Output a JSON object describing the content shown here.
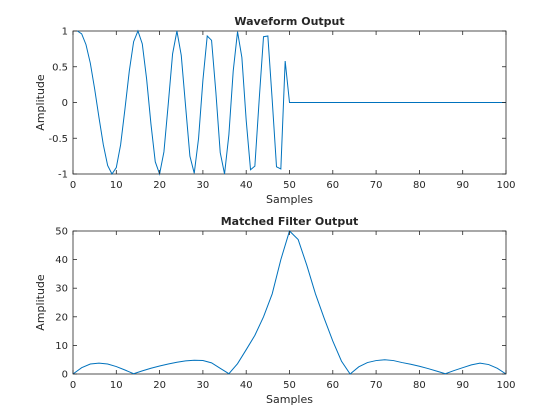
{
  "line_color": "#0072BD",
  "chart_data": [
    {
      "type": "line",
      "title": "Waveform Output",
      "xlabel": "Samples",
      "ylabel": "Amplitude",
      "xlim": [
        0,
        100
      ],
      "ylim": [
        -1,
        1
      ],
      "xticks": [
        0,
        10,
        20,
        30,
        40,
        50,
        60,
        70,
        80,
        90,
        100
      ],
      "xtick_labels": [
        "0",
        "10",
        "20",
        "30",
        "40",
        "50",
        "60",
        "70",
        "80",
        "90",
        "100"
      ],
      "yticks": [
        -1,
        -0.5,
        0,
        0.5,
        1
      ],
      "ytick_labels": [
        "-1",
        "-0.5",
        "0",
        "0.5",
        "1"
      ],
      "grid": false,
      "series": [
        {
          "x": [
            1,
            2,
            3,
            4,
            5,
            6,
            7,
            8,
            9,
            10,
            11,
            12,
            13,
            14,
            15,
            16,
            17,
            18,
            19,
            20,
            21,
            22,
            23,
            24,
            25,
            26,
            27,
            28,
            29,
            30,
            31,
            32,
            33,
            34,
            35,
            36,
            37,
            38,
            39,
            40,
            41,
            42,
            43,
            44,
            45,
            46,
            47,
            48,
            49,
            50,
            51,
            52,
            100
          ],
          "values": [
            1,
            0.96,
            0.81,
            0.55,
            0.19,
            -0.21,
            -0.59,
            -0.88,
            -1,
            -0.91,
            -0.59,
            -0.09,
            0.44,
            0.85,
            1,
            0.82,
            0.33,
            -0.3,
            -0.83,
            -1,
            -0.69,
            -0.02,
            0.68,
            1,
            0.66,
            -0.05,
            -0.75,
            -0.99,
            -0.5,
            0.31,
            0.93,
            0.87,
            0.14,
            -0.7,
            -1,
            -0.45,
            0.44,
            0.99,
            0.63,
            -0.25,
            -0.94,
            -0.89,
            0.04,
            0.92,
            0.93,
            0.04,
            -0.9,
            -0.93,
            0.58,
            0,
            0,
            0,
            0
          ]
        }
      ]
    },
    {
      "type": "line",
      "title": "Matched Filter Output",
      "xlabel": "Samples",
      "ylabel": "Amplitude",
      "xlim": [
        0,
        100
      ],
      "ylim": [
        0,
        50
      ],
      "xticks": [
        0,
        10,
        20,
        30,
        40,
        50,
        60,
        70,
        80,
        90,
        100
      ],
      "xtick_labels": [
        "0",
        "10",
        "20",
        "30",
        "40",
        "50",
        "60",
        "70",
        "80",
        "90",
        "100"
      ],
      "yticks": [
        0,
        10,
        20,
        30,
        40,
        50
      ],
      "ytick_labels": [
        "0",
        "10",
        "20",
        "30",
        "40",
        "50"
      ],
      "grid": false,
      "series": [
        {
          "x": [
            0,
            2,
            4,
            6,
            8,
            10,
            12,
            14,
            16,
            18,
            20,
            22,
            24,
            26,
            28,
            30,
            32,
            34,
            36,
            38,
            40,
            42,
            44,
            46,
            48,
            50,
            52,
            54,
            56,
            58,
            60,
            62,
            64,
            66,
            68,
            70,
            72,
            74,
            76,
            78,
            80,
            82,
            84,
            86,
            88,
            90,
            92,
            94,
            96,
            98,
            100
          ],
          "values": [
            0,
            2.2,
            3.5,
            3.8,
            3.5,
            2.6,
            1.4,
            0.1,
            1.1,
            2.0,
            2.8,
            3.5,
            4.1,
            4.6,
            4.8,
            4.7,
            3.9,
            2.0,
            0.1,
            3.6,
            8.5,
            13.5,
            20.0,
            28.0,
            40.0,
            50.0,
            47.0,
            38.0,
            28.0,
            19.5,
            11.5,
            4.5,
            0,
            2.5,
            4.0,
            4.7,
            5.0,
            4.7,
            4.0,
            3.4,
            2.7,
            1.9,
            1.0,
            0.1,
            1.2,
            2.2,
            3.2,
            3.8,
            3.3,
            2.0,
            0
          ]
        }
      ]
    }
  ]
}
